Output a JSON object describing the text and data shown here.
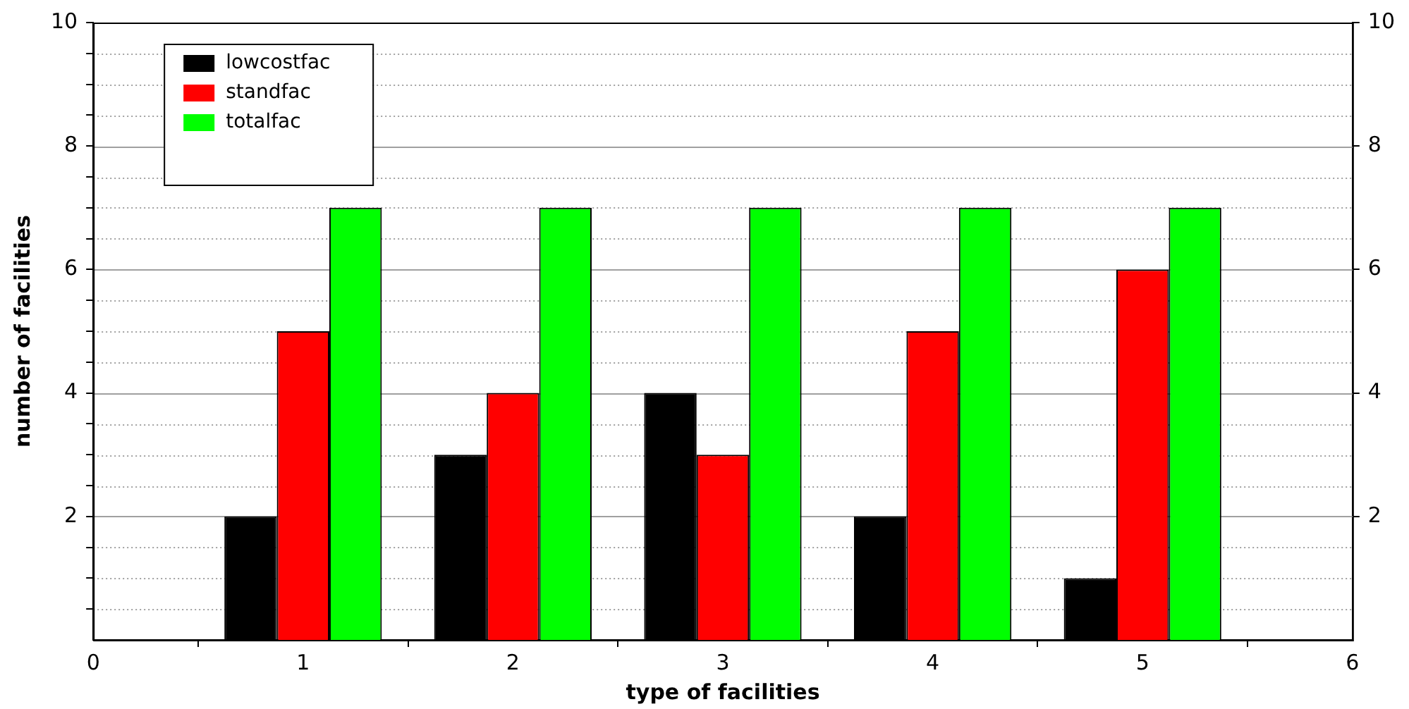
{
  "chart_data": {
    "type": "bar",
    "xlabel": "type of facilities",
    "ylabel": "number of facilities",
    "x": [
      1,
      2,
      3,
      4,
      5
    ],
    "xlim": [
      0,
      6
    ],
    "xticks": [
      0,
      1,
      2,
      3,
      4,
      5,
      6
    ],
    "ylim": [
      0,
      10
    ],
    "yticks": [
      {
        "value": 0.5,
        "label": null
      },
      {
        "value": 1,
        "label": null
      },
      {
        "value": 1.5,
        "label": null
      },
      2,
      {
        "value": 2.5,
        "label": null
      },
      {
        "value": 3,
        "label": null
      },
      {
        "value": 3.5,
        "label": null
      },
      4,
      {
        "value": 4.5,
        "label": null
      },
      {
        "value": 5,
        "label": null
      },
      {
        "value": 5.5,
        "label": null
      },
      6,
      {
        "value": 6.5,
        "label": null
      },
      {
        "value": 7,
        "label": null
      },
      {
        "value": 7.5,
        "label": null
      },
      8,
      {
        "value": 8.5,
        "label": null
      },
      {
        "value": 9,
        "label": null
      },
      {
        "value": 9.5,
        "label": null
      },
      10
    ],
    "y2lim": [
      0,
      10
    ],
    "y2ticks": [
      2,
      4,
      6,
      8,
      10
    ],
    "grid": "y",
    "legend": "top left",
    "series": [
      {
        "name": "lowcostfac",
        "color": "#000000",
        "values": [
          2,
          3,
          4,
          2,
          1
        ]
      },
      {
        "name": "standfac",
        "color": "#ff0000",
        "values": [
          5,
          4,
          3,
          5,
          6
        ]
      },
      {
        "name": "totalfac",
        "color": "#00ff00",
        "values": [
          7,
          7,
          7,
          7,
          7
        ]
      }
    ]
  }
}
